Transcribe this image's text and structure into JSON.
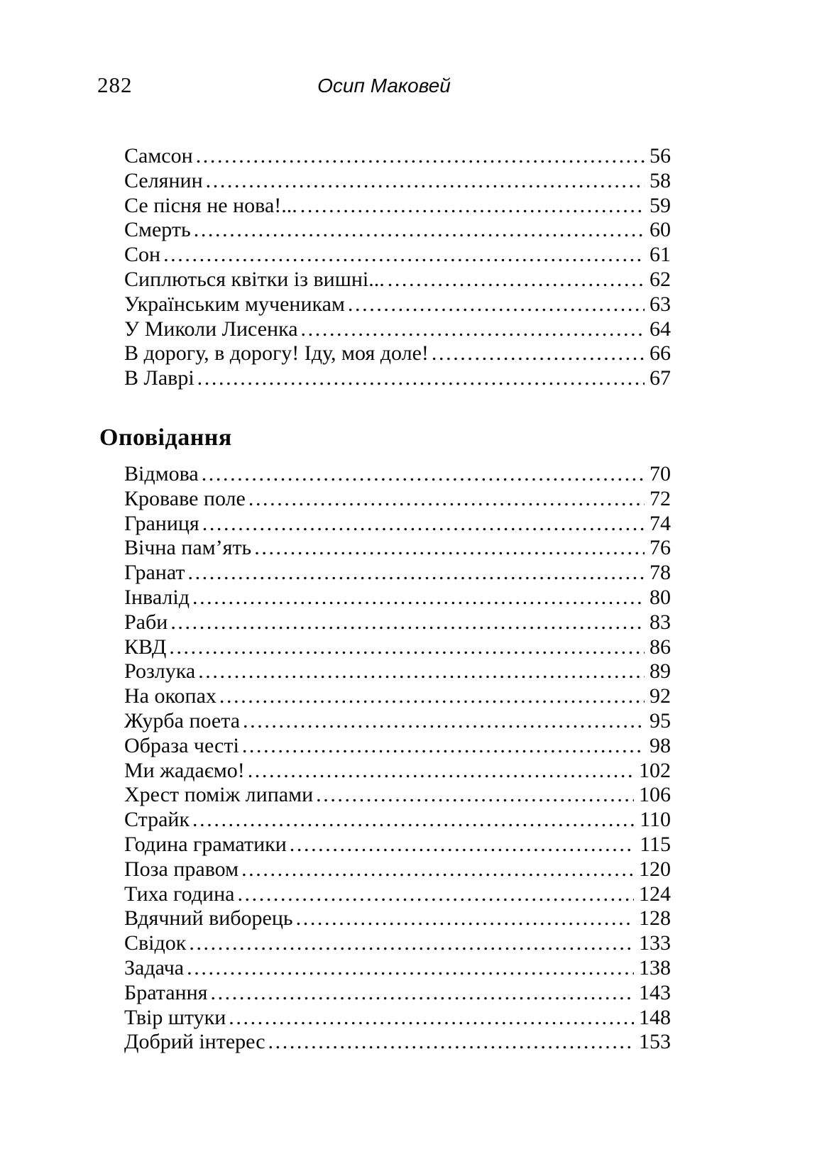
{
  "page": {
    "number": "282",
    "running_header": "Осип Маковей"
  },
  "toc": {
    "sections": [
      {
        "heading": "",
        "entries": [
          {
            "title": "Самсон",
            "page": "56"
          },
          {
            "title": "Селянин",
            "page": "58"
          },
          {
            "title": "Се пісня не нова!...",
            "page": "59"
          },
          {
            "title": "Смерть",
            "page": "60"
          },
          {
            "title": "Сон",
            "page": "61"
          },
          {
            "title": "Сиплються квітки із вишні...",
            "page": "62"
          },
          {
            "title": "Українським мученикам",
            "page": "63"
          },
          {
            "title": "У Миколи Лисенка",
            "page": "64"
          },
          {
            "title": "В дорогу, в дорогу! Іду, моя доле!",
            "page": "66"
          },
          {
            "title": "В Лаврі",
            "page": "67"
          }
        ]
      },
      {
        "heading": "Оповідання",
        "entries": [
          {
            "title": "Відмова",
            "page": "70"
          },
          {
            "title": "Кроваве поле",
            "page": "72"
          },
          {
            "title": "Границя",
            "page": "74"
          },
          {
            "title": "Вічна пам’ять",
            "page": "76"
          },
          {
            "title": "Гранат",
            "page": "78"
          },
          {
            "title": "Інвалід",
            "page": "80"
          },
          {
            "title": "Раби",
            "page": "83"
          },
          {
            "title": "КВД",
            "page": "86"
          },
          {
            "title": "Розлука",
            "page": "89"
          },
          {
            "title": "На окопах",
            "page": "92"
          },
          {
            "title": "Журба поета",
            "page": "95"
          },
          {
            "title": "Образа честі",
            "page": "98"
          },
          {
            "title": "Ми жадаємо!",
            "page": "102"
          },
          {
            "title": "Хрест поміж липами",
            "page": "106"
          },
          {
            "title": "Страйк",
            "page": "110"
          },
          {
            "title": "Година граматики",
            "page": "115"
          },
          {
            "title": "Поза правом",
            "page": "120"
          },
          {
            "title": "Тиха година",
            "page": "124"
          },
          {
            "title": "Вдячний виборець",
            "page": "128"
          },
          {
            "title": "Свідок",
            "page": "133"
          },
          {
            "title": "Задача",
            "page": "138"
          },
          {
            "title": "Братання",
            "page": "143"
          },
          {
            "title": "Твір штуки",
            "page": "148"
          },
          {
            "title": "Добрий інтерес",
            "page": "153"
          }
        ]
      }
    ]
  }
}
